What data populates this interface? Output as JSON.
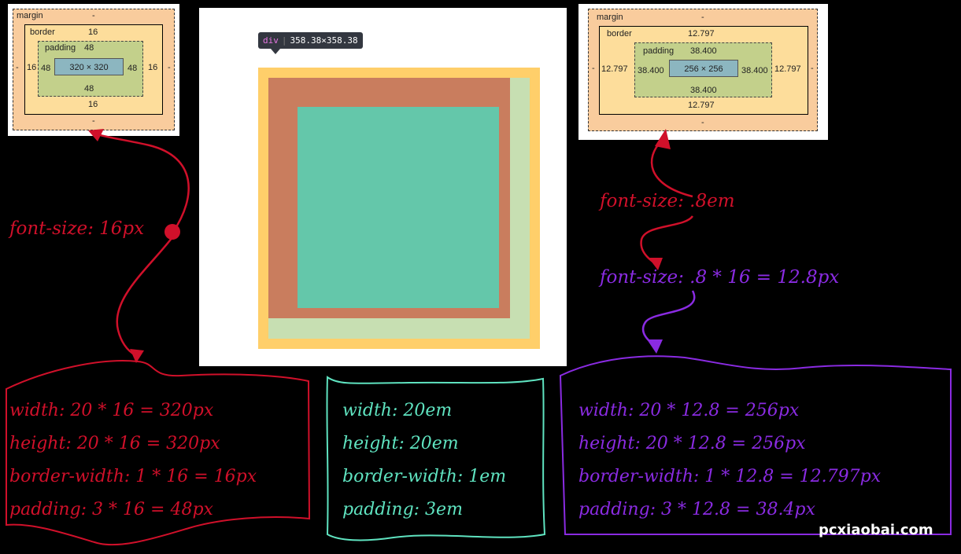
{
  "colors": {
    "red": "#d0102a",
    "teal": "#5fe3c0",
    "purple": "#8a2be2",
    "preview_border": "#ffcf6a",
    "preview_padding_left": "#c97d5e",
    "preview_padding_right": "#c7dfb2",
    "preview_content": "#64c7aa"
  },
  "left_boxmodel": {
    "margin_label": "margin",
    "margin_top": "-",
    "margin_bottom": "-",
    "margin_left": "-",
    "margin_right": "-",
    "border_label": "border",
    "border_top": "16",
    "border_bottom": "16",
    "border_left": "16",
    "border_right": "16",
    "padding_label": "padding",
    "padding_top": "48",
    "padding_bottom": "48",
    "padding_left": "48",
    "padding_right": "48",
    "content": "320 × 320"
  },
  "right_boxmodel": {
    "margin_label": "margin",
    "margin_top": "-",
    "margin_bottom": "-",
    "margin_left": "-",
    "margin_right": "-",
    "border_label": "border",
    "border_top": "12.797",
    "border_bottom": "12.797",
    "border_left": "12.797",
    "border_right": "12.797",
    "padding_label": "padding",
    "padding_top": "38.400",
    "padding_bottom": "38.400",
    "padding_left": "38.400",
    "padding_right": "38.400",
    "content": "256 × 256"
  },
  "tooltip": {
    "tag": "div",
    "size": "358.38×358.38"
  },
  "labels": {
    "font_size_16": "font-size: 16px",
    "font_size_em": "font-size: .8em",
    "font_size_calc": "font-size: .8 * 16 = 12.8px"
  },
  "left_note": {
    "lines": [
      "width: 20 * 16 = 320px",
      "height: 20 * 16 = 320px",
      "border-width: 1 * 16 = 16px",
      "padding: 3 * 16 = 48px"
    ]
  },
  "middle_note": {
    "lines": [
      "width: 20em",
      "height: 20em",
      "border-width: 1em",
      "padding: 3em"
    ]
  },
  "right_note": {
    "lines": [
      "width: 20 * 12.8 = 256px",
      "height: 20 * 12.8 = 256px",
      "border-width: 1 * 12.8 = 12.797px",
      "padding: 3 * 12.8 = 38.4px"
    ]
  },
  "watermark": "pcxiaobai.com"
}
